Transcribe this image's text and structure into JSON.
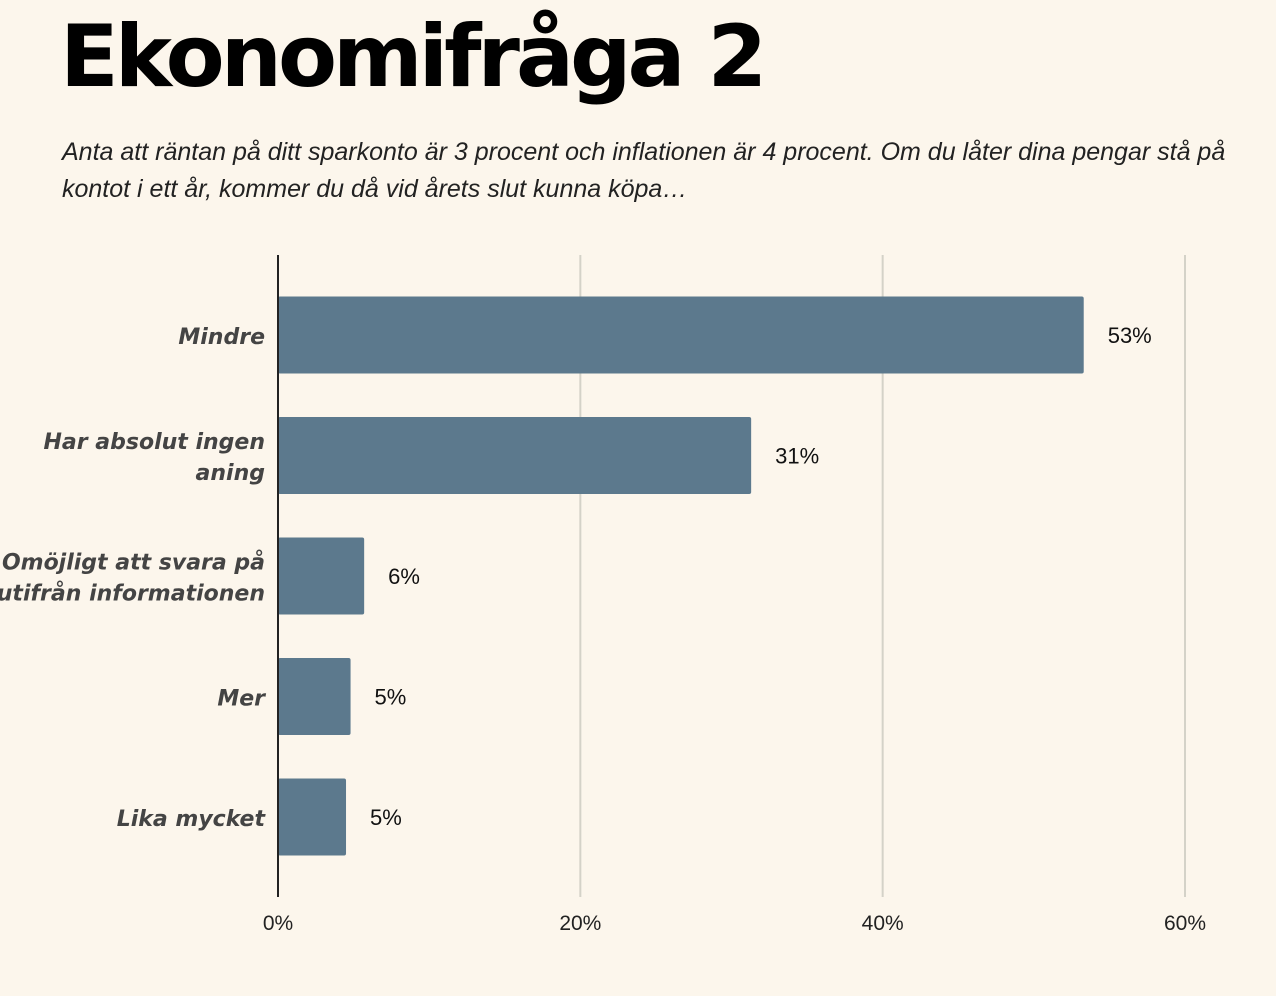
{
  "header": {
    "title": "Ekonomifråga 2",
    "subtitle": "Anta att räntan på ditt sparkonto är 3 procent och inflationen är 4 procent. Om du låter dina pengar stå på kontot i ett år, kommer du då vid årets slut kunna köpa…"
  },
  "colors": {
    "background": "#fcf6ec",
    "bar": "#5c798d",
    "gridline": "#d4d2c8",
    "axis": "#222222",
    "category_label": "#444444"
  },
  "chart_data": {
    "type": "bar",
    "orientation": "horizontal",
    "categories": [
      [
        "Mindre"
      ],
      [
        "Har absolut ingen",
        "aning"
      ],
      [
        "Omöjligt att svara på",
        "utifrån informationen"
      ],
      [
        "Mer"
      ],
      [
        "Lika mycket"
      ]
    ],
    "values": [
      53.3,
      31.3,
      5.7,
      4.8,
      4.5
    ],
    "value_labels": [
      "53%",
      "31%",
      "6%",
      "5%",
      "5%"
    ],
    "xlim": [
      0,
      60
    ],
    "xticks": [
      0,
      20,
      40,
      60
    ],
    "xtick_labels": [
      "0%",
      "20%",
      "40%",
      "60%"
    ],
    "grid": true
  }
}
